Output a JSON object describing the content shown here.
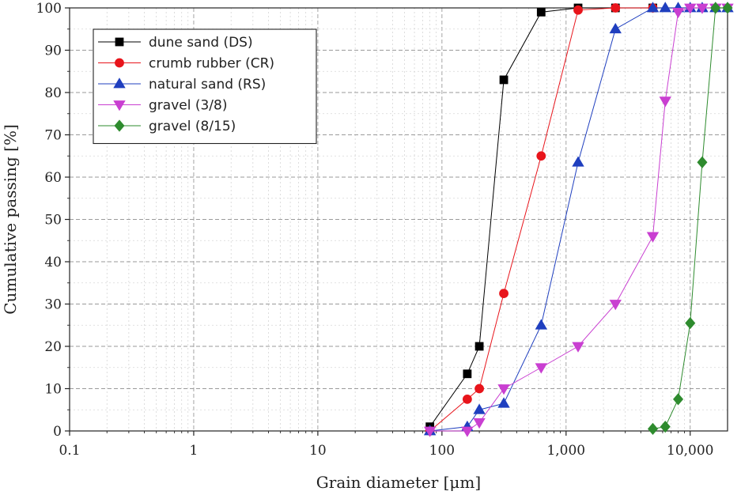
{
  "chart_data": {
    "type": "scatter",
    "xlabel": "Grain diameter [μm]",
    "ylabel": "Cumulative passing [%]",
    "x_scale": "log",
    "xlim": [
      0.1,
      20000
    ],
    "ylim": [
      0,
      100
    ],
    "x_ticks": [
      {
        "value": 0.1,
        "label": "0.1"
      },
      {
        "value": 1,
        "label": "1"
      },
      {
        "value": 10,
        "label": "10"
      },
      {
        "value": 100,
        "label": "100"
      },
      {
        "value": 1000,
        "label": "1,000"
      },
      {
        "value": 10000,
        "label": "10,000"
      }
    ],
    "y_ticks": [
      0,
      10,
      20,
      30,
      40,
      50,
      60,
      70,
      80,
      90,
      100
    ],
    "grid": true,
    "legend_position": "top-left",
    "series": [
      {
        "name": "dune sand (DS)",
        "color": "#000000",
        "marker": "square",
        "x": [
          80,
          160,
          200,
          315,
          630,
          1250,
          2500,
          5000
        ],
        "y": [
          1,
          13.5,
          20,
          83,
          99,
          100,
          100,
          100
        ]
      },
      {
        "name": "crumb rubber (CR)",
        "color": "#e8141b",
        "marker": "circle",
        "x": [
          80,
          160,
          200,
          315,
          630,
          1250,
          2500,
          5000
        ],
        "y": [
          0,
          7.5,
          10,
          32.5,
          65,
          99.5,
          100,
          100
        ]
      },
      {
        "name": "natural sand (RS)",
        "color": "#1f3fbf",
        "marker": "triangle-up",
        "x": [
          80,
          160,
          200,
          315,
          630,
          1250,
          2500,
          5000,
          6300,
          8000,
          10000,
          12500,
          16000,
          20000
        ],
        "y": [
          0,
          1,
          5,
          6.5,
          25,
          63.5,
          95,
          100,
          100,
          100,
          100,
          100,
          100,
          100
        ]
      },
      {
        "name": "gravel (3/8)",
        "color": "#c93fd1",
        "marker": "triangle-down",
        "x": [
          80,
          160,
          200,
          315,
          630,
          1250,
          2500,
          5000,
          6300,
          8000,
          10000,
          12500,
          16000,
          20000
        ],
        "y": [
          0,
          0,
          2,
          10,
          15,
          20,
          30,
          46,
          78,
          99,
          100,
          100,
          100,
          100
        ]
      },
      {
        "name": "gravel (8/15)",
        "color": "#2e8b2e",
        "marker": "diamond",
        "x": [
          5000,
          6300,
          8000,
          10000,
          12500,
          16000,
          20000
        ],
        "y": [
          0.5,
          1,
          7.5,
          25.5,
          63.5,
          100,
          100
        ]
      }
    ]
  }
}
